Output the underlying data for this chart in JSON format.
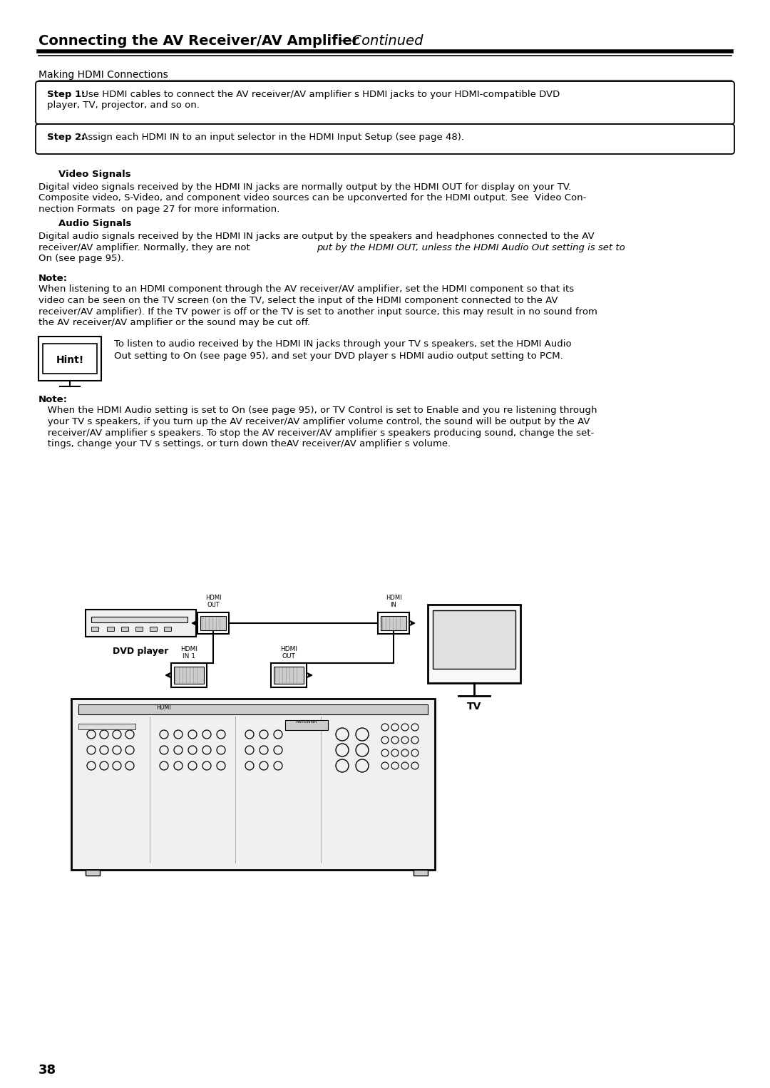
{
  "title_bold": "Connecting the AV Receiver/AV Amplifier",
  "title_italic": "—Continued",
  "section_heading": "Making HDMI Connections",
  "step1_bold": "Step 1:",
  "step1_text": " Use HDMI cables to connect the AV receiver∕AV amplifier s HDMI jacks to your HDMI-compatible DVD",
  "step1_text2": "player, TV, projector, and so on.",
  "step2_bold": "Step 2:",
  "step2_text": " Assign each HDMI IN to an input selector in the HDMI Input Setup (see page 48).",
  "video_signals_heading": "Video Signals",
  "vs_line1": "Digital video signals received by the HDMI IN jacks are normally output by the HDMI OUT for display on your TV.",
  "vs_line2": "Composite video, S-Video, and component video sources can be upconverted for the HDMI output. See  Video Con-",
  "vs_line3": "nection Formats  on page 27 for more information.",
  "audio_signals_heading": "Audio Signals",
  "as_line1": "Digital audio signals received by the HDMI IN jacks are output by the speakers and headphones connected to the AV",
  "as_line2": "receiver∕AV amplifier. Normally, they are notιput by the HDMI OUT, unless the HDMI Audio Out setting is set to",
  "as_line3": "On (see page 95).",
  "note1_label": "Note:",
  "n1_line1": "When listening to an HDMI component through the AV receiver∕AV amplifier, set the HDMI component so that its",
  "n1_line2": "video can be seen on the TV screen (on the TV, select the input of the HDMI component connected to the AV",
  "n1_line3": "receiver∕AV amplifier). If the TV power is off or the TV is set to another input source, this may result in no sound from",
  "n1_line4": "the AV receiver∕AV amplifier or the sound may be cut off.",
  "hint_label": "Hint!",
  "hint_line1": "To listen to audio received by the HDMI IN jacks through your TV s speakers, set the HDMI Audio",
  "hint_line2": "Out setting to On (see page 95), and set your DVD player s HDMI audio output setting to PCM.",
  "note2_label": "Note:",
  "n2_line1": "   When the HDMI Audio setting is set to On (see page 95), or TV Control is set to Enable and you re listening through",
  "n2_line2": "   your TV s speakers, if you turn up the AV receiver∕AV amplifier volume control, the sound will be output by the AV",
  "n2_line3": "   receiver∕AV amplifier s speakers. To stop the AV receiver∕AV amplifier s speakers producing sound, change the set-",
  "n2_line4": "   tings, change your TV s settings, or turn down the​AV receiver∕AV amplifier s volume.",
  "dvd_label": "DVD player",
  "tv_label": "TV",
  "page_number": "38",
  "bg_color": "#ffffff",
  "text_color": "#000000"
}
